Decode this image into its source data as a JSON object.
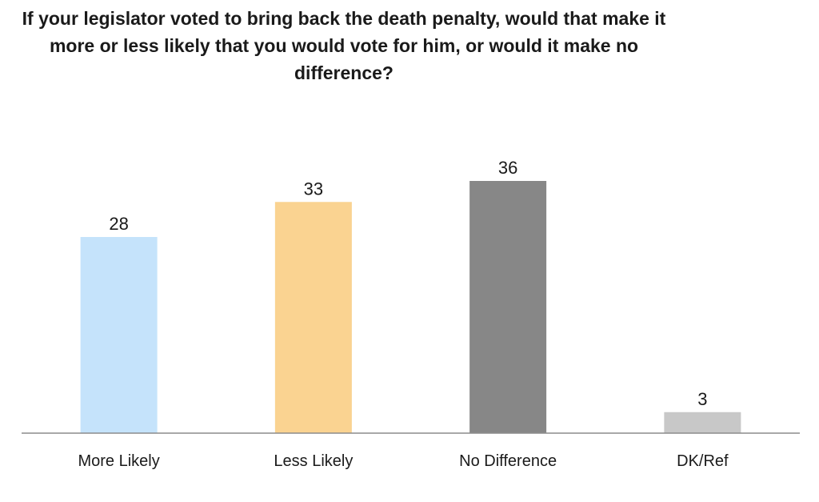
{
  "chart_data": {
    "type": "bar",
    "title": "If your legislator voted to bring back the death penalty, would that make it more or less likely that you would vote for him, or would it make no difference?",
    "categories": [
      "More Likely",
      "Less Likely",
      "No Difference",
      "DK/Ref"
    ],
    "values": [
      28,
      33,
      36,
      3
    ],
    "colors": [
      "#c5e3fb",
      "#fad391",
      "#878787",
      "#c8c8c8"
    ],
    "data_labels": [
      "28",
      "33",
      "36",
      "3"
    ],
    "xlabel": "",
    "ylabel": "",
    "ylim": [
      0,
      40
    ],
    "grid": false,
    "legend": "none"
  }
}
